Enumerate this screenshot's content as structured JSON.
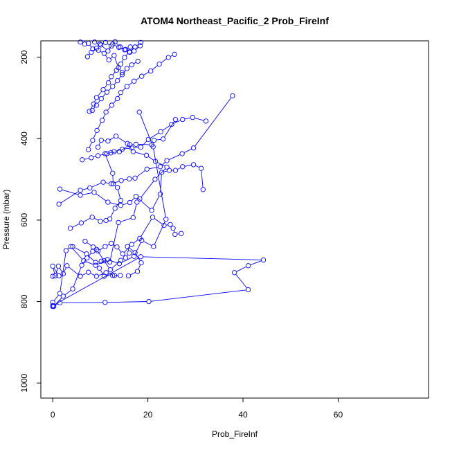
{
  "chart_data": {
    "type": "line",
    "title": "ATOM4 Northeast_Pacific_2 Prob_FireInf",
    "xlabel": "Prob_FireInf",
    "ylabel": "Pressure (mbar)",
    "xlim": [
      -2.5,
      79
    ],
    "ylim": [
      1037,
      160
    ],
    "y_reversed": true,
    "xticks": [
      0,
      20,
      40,
      60
    ],
    "yticks": [
      200,
      400,
      600,
      800,
      1000
    ],
    "grid": false,
    "legend": "none",
    "series_color": "#0000ff",
    "series": [
      {
        "x": [
          0,
          1.5,
          11,
          20.2,
          41.1,
          38.2,
          41.1,
          44.3,
          18.5,
          0
        ],
        "y": [
          812,
          803,
          802,
          800,
          771,
          729,
          712,
          698,
          690,
          810
        ]
      },
      {
        "x": [
          0,
          1.3,
          0,
          0.5,
          1.2,
          2.2,
          3,
          5.8,
          7.5,
          9.2,
          11.2,
          13,
          14.2,
          12.6,
          10.8,
          9.8
        ],
        "y": [
          738,
          737,
          713,
          737,
          713,
          732,
          712,
          738,
          728,
          738,
          729,
          736,
          736,
          736,
          738,
          718
        ]
      },
      {
        "x": [
          0,
          1.5,
          2.8,
          3.8,
          6.5,
          9,
          11.5,
          14,
          17.1,
          18.7,
          21.2,
          23.8,
          21.1,
          18.2
        ],
        "y": [
          802,
          780,
          675,
          665,
          700,
          711,
          697,
          707,
          689,
          650,
          665,
          598,
          420,
          335
        ]
      },
      {
        "x": [
          0.2,
          2.2,
          4.2,
          6.1,
          7.2,
          8.4,
          9.2,
          10.8,
          12.1,
          14.3,
          15.3,
          16.1,
          15.7,
          17.3,
          18.6,
          17.8,
          15.9
        ],
        "y": [
          812,
          787,
          769,
          711,
          693,
          677,
          672,
          700,
          722,
          699,
          693,
          681,
          665,
          680,
          705,
          726,
          737
        ]
      },
      {
        "x": [
          4.2,
          7.1,
          9,
          10.2,
          12,
          13.8,
          16.9,
          17.7,
          18.3,
          21.5,
          24,
          21.6,
          19.7,
          16.9,
          15.7,
          13.3,
          11.6,
          10.2,
          9.5
        ],
        "y": [
          665,
          683,
          704,
          701,
          703,
          606,
          594,
          556,
          548,
          500,
          470,
          456,
          441,
          432,
          412,
          394,
          406,
          404,
          421
        ]
      },
      {
        "x": [
          3.7,
          6,
          8.3,
          10,
          11.2,
          12,
          13.1,
          14.3,
          13.6,
          12.7,
          12.6,
          11,
          12.2,
          14,
          16.2,
          17.5,
          20.8,
          21.3,
          23.2,
          25.8
        ],
        "y": [
          620,
          607,
          593,
          603,
          601,
          597,
          571,
          552,
          520,
          511,
          485,
          437,
          435,
          432,
          415,
          414,
          415,
          404,
          401,
          353
        ]
      },
      {
        "x": [
          6.8,
          8.5,
          9.5,
          11,
          12.3,
          13.5,
          14.7,
          16.6,
          18.3,
          21,
          23.4,
          24.7,
          25.3,
          25.7,
          27
        ],
        "y": [
          652,
          666,
          676,
          665,
          657,
          666,
          683,
          660,
          645,
          593,
          613,
          611,
          620,
          635,
          633
        ]
      },
      {
        "x": [
          1.5,
          5.8,
          8.7,
          11.6,
          14.3,
          16.2,
          17.5,
          20.8,
          22.6,
          22.9,
          24.5,
          25.8,
          27.3,
          29.6,
          31.2,
          31.6
        ],
        "y": [
          524,
          539,
          532,
          556,
          564,
          557,
          542,
          576,
          536,
          483,
          478,
          478,
          469,
          464,
          473,
          525
        ]
      },
      {
        "x": [
          1.3,
          5.8,
          7.8,
          10.6,
          12.3,
          14.4,
          16.1,
          17.3,
          19.8,
          22.6,
          24,
          27.2,
          29.6,
          37.8
        ],
        "y": [
          561,
          527,
          521,
          507,
          511,
          503,
          499,
          497,
          475,
          469,
          454,
          437,
          423,
          295
        ]
      },
      {
        "x": [
          6.2,
          8.1,
          9.5,
          11.4,
          12.9,
          14.6,
          16.6,
          18.5,
          20.1,
          22.7,
          25,
          27.3,
          29.4,
          32.2
        ],
        "y": [
          452,
          447,
          442,
          437,
          432,
          426,
          423,
          421,
          402,
          383,
          365,
          353,
          348,
          357
        ]
      },
      {
        "x": [
          7.5,
          8.4,
          9.3,
          10.4,
          11.2,
          12.4,
          13.6,
          14.3,
          15.6,
          17.1,
          18.7,
          20.6,
          22.4,
          24.3,
          25.6
        ],
        "y": [
          427,
          404,
          380,
          355,
          335,
          318,
          302,
          287,
          272,
          259,
          247,
          234,
          217,
          201,
          193
        ]
      },
      {
        "x": [
          8.3,
          9.2,
          10.2,
          11.4,
          12.6,
          13.6,
          14.6,
          15.6,
          16.6,
          17.9
        ],
        "y": [
          331,
          318,
          302,
          286,
          272,
          258,
          243,
          228,
          219,
          210
        ]
      },
      {
        "x": [
          7.7,
          8.6,
          9.2,
          10.6,
          11.7,
          12.3,
          13.4,
          14.3,
          15.1,
          16.1,
          17.3,
          18.5
        ],
        "y": [
          333,
          315,
          299,
          280,
          263,
          248,
          232,
          217,
          201,
          187,
          175,
          164
        ]
      },
      {
        "x": [
          7.3,
          8.1,
          9.2,
          10.1,
          11.6,
          12.6,
          13.9,
          15.1,
          16.3
        ],
        "y": [
          199,
          188,
          178,
          170,
          185,
          168,
          176,
          182,
          175
        ]
      },
      {
        "x": [
          5.8,
          6.7,
          7.5,
          8.4,
          9.6,
          10.8,
          11.8,
          12.9,
          13.8,
          14.6
        ],
        "y": [
          163,
          168,
          166,
          180,
          183,
          191,
          207,
          196,
          226,
          238
        ]
      },
      {
        "x": [
          8.8,
          9.9,
          11.1,
          12.3,
          13.1,
          14.2,
          15.3,
          16.2,
          17.1,
          18.4
        ],
        "y": [
          163,
          168,
          164,
          173,
          162,
          175,
          181,
          188,
          185,
          172
        ]
      }
    ]
  }
}
